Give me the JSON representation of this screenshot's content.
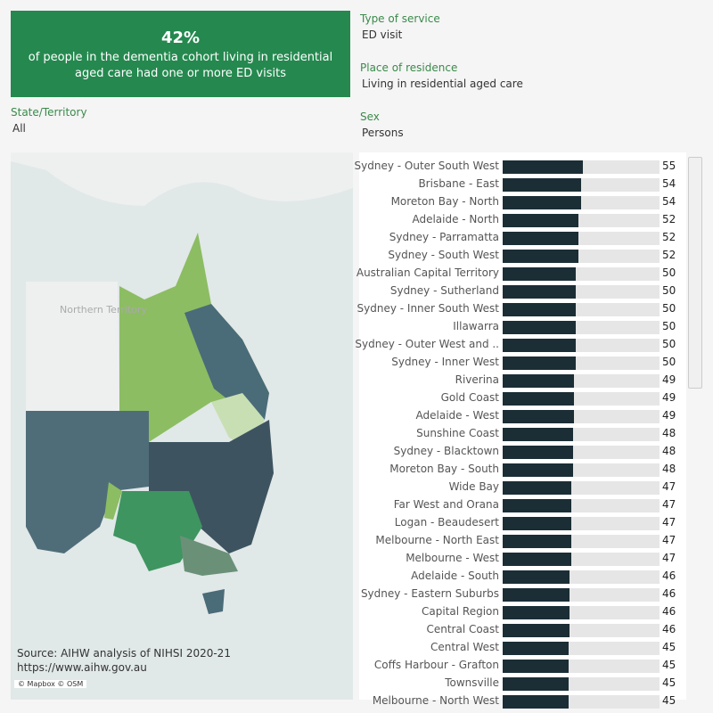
{
  "kpi": {
    "value": "42%",
    "text": "of people in the dementia cohort living in residential aged care had one or more ED visits",
    "color": "#25894f"
  },
  "filters": {
    "state": {
      "label": "State/Territory",
      "value": "All"
    },
    "service": {
      "label": "Type of service",
      "value": "ED visit"
    },
    "residence": {
      "label": "Place of residence",
      "value": "Living in residential aged care"
    },
    "sex": {
      "label": "Sex",
      "value": "Persons"
    }
  },
  "map": {
    "territory_label": "Northern Territory",
    "source": "Source: AIHW analysis of NIHSI 2020-21",
    "url": "https://www.aihw.gov.au",
    "attribution": "© Mapbox © OSM"
  },
  "chart_data": {
    "type": "bar",
    "orientation": "horizontal",
    "bar_color": "#1b2e36",
    "track_color": "#e6e6e6",
    "rows": [
      {
        "name": "Sydney - Outer South West",
        "value": 55
      },
      {
        "name": "Brisbane - East",
        "value": 54
      },
      {
        "name": "Moreton Bay - North",
        "value": 54
      },
      {
        "name": "Adelaide - North",
        "value": 52
      },
      {
        "name": "Sydney - Parramatta",
        "value": 52
      },
      {
        "name": "Sydney - South West",
        "value": 52
      },
      {
        "name": "Australian Capital Territory",
        "value": 50
      },
      {
        "name": "Sydney - Sutherland",
        "value": 50
      },
      {
        "name": "Sydney - Inner South West",
        "value": 50
      },
      {
        "name": "Illawarra",
        "value": 50
      },
      {
        "name": "Sydney - Outer West and ..",
        "value": 50
      },
      {
        "name": "Sydney - Inner West",
        "value": 50
      },
      {
        "name": "Riverina",
        "value": 49
      },
      {
        "name": "Gold Coast",
        "value": 49
      },
      {
        "name": "Adelaide - West",
        "value": 49
      },
      {
        "name": "Sunshine Coast",
        "value": 48
      },
      {
        "name": "Sydney - Blacktown",
        "value": 48
      },
      {
        "name": "Moreton Bay - South",
        "value": 48
      },
      {
        "name": "Wide Bay",
        "value": 47
      },
      {
        "name": "Far West and Orana",
        "value": 47
      },
      {
        "name": "Logan - Beaudesert",
        "value": 47
      },
      {
        "name": "Melbourne - North East",
        "value": 47
      },
      {
        "name": "Melbourne - West",
        "value": 47
      },
      {
        "name": "Adelaide - South",
        "value": 46
      },
      {
        "name": "Sydney - Eastern Suburbs",
        "value": 46
      },
      {
        "name": "Capital Region",
        "value": 46
      },
      {
        "name": "Central Coast",
        "value": 46
      },
      {
        "name": "Central West",
        "value": 45
      },
      {
        "name": "Coffs Harbour - Grafton",
        "value": 45
      },
      {
        "name": "Townsville",
        "value": 45
      },
      {
        "name": "Melbourne - North West",
        "value": 45
      }
    ]
  }
}
